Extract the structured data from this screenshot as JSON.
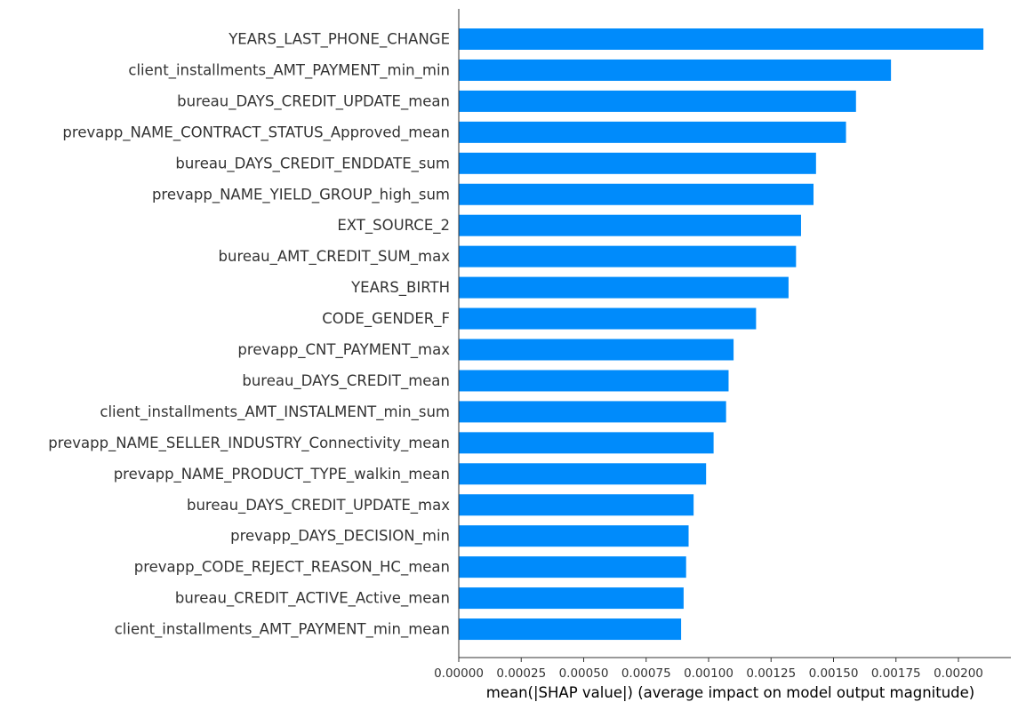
{
  "chart_data": {
    "type": "bar",
    "orientation": "horizontal",
    "categories": [
      "YEARS_LAST_PHONE_CHANGE",
      "client_installments_AMT_PAYMENT_min_min",
      "bureau_DAYS_CREDIT_UPDATE_mean",
      "prevapp_NAME_CONTRACT_STATUS_Approved_mean",
      "bureau_DAYS_CREDIT_ENDDATE_sum",
      "prevapp_NAME_YIELD_GROUP_high_sum",
      "EXT_SOURCE_2",
      "bureau_AMT_CREDIT_SUM_max",
      "YEARS_BIRTH",
      "CODE_GENDER_F",
      "prevapp_CNT_PAYMENT_max",
      "bureau_DAYS_CREDIT_mean",
      "client_installments_AMT_INSTALMENT_min_sum",
      "prevapp_NAME_SELLER_INDUSTRY_Connectivity_mean",
      "prevapp_NAME_PRODUCT_TYPE_walkin_mean",
      "bureau_DAYS_CREDIT_UPDATE_max",
      "prevapp_DAYS_DECISION_min",
      "prevapp_CODE_REJECT_REASON_HC_mean",
      "bureau_CREDIT_ACTIVE_Active_mean",
      "client_installments_AMT_PAYMENT_min_mean"
    ],
    "values": [
      0.0021,
      0.00173,
      0.00159,
      0.00155,
      0.00143,
      0.00142,
      0.00137,
      0.00135,
      0.00132,
      0.00119,
      0.0011,
      0.00108,
      0.00107,
      0.00102,
      0.00099,
      0.00094,
      0.00092,
      0.00091,
      0.0009,
      0.00089
    ],
    "xticks": [
      "0.00000",
      "0.00025",
      "0.00050",
      "0.00075",
      "0.00100",
      "0.00125",
      "0.00150",
      "0.00175",
      "0.00200"
    ],
    "xtick_values": [
      0,
      0.00025,
      0.0005,
      0.00075,
      0.001,
      0.00125,
      0.0015,
      0.00175,
      0.002
    ],
    "xlim": [
      0,
      0.00221
    ],
    "xlabel": "mean(|SHAP value|) (average impact on model output magnitude)",
    "ylabel": "",
    "title": "",
    "grid": false,
    "bar_color": "#008bfb",
    "text_color": "#333333",
    "axis_color": "#333333"
  }
}
